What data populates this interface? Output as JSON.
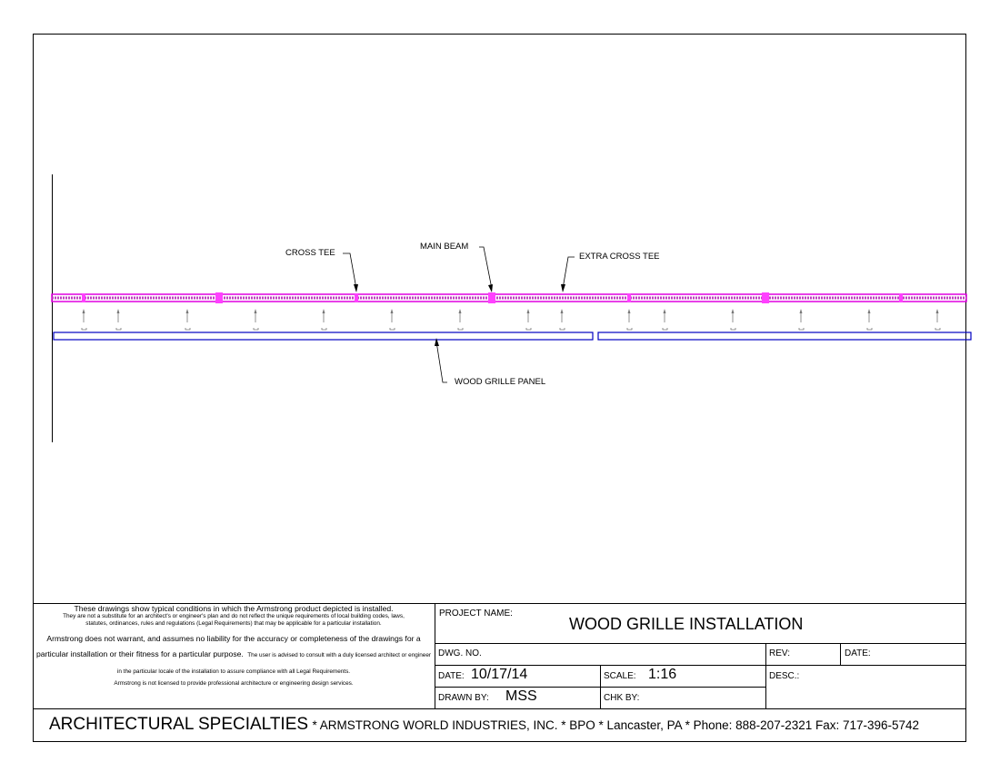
{
  "drawing": {
    "labels": {
      "cross_tee": "CROSS TEE",
      "main_beam": "MAIN BEAM",
      "extra_cross_tee": "EXTRA CROSS TEE",
      "wood_grille_panel": "WOOD GRILLE PANEL"
    }
  },
  "disclaimer": {
    "p1": "These drawings show typical conditions in which the Armstrong product depicted is installed.",
    "p2": "They are not a substitute for an architect's or engineer's plan and do not reflect the unique requirements of local building codes, laws, statutes, ordinances, rules and regulations (Legal Requirements) that may be applicable for a particular installation.",
    "p3": "Armstrong does not warrant, and assumes no liability for the accuracy or completeness of the drawings for a particular installation or their fitness for a particular purpose.",
    "p3b": "The user is advised to consult with a duly licensed architect or engineer in the particular locale of the installation to assure compliance with all Legal Requirements.",
    "p4": "Armstrong is not licensed to provide professional architecture or engineering design services."
  },
  "title_block": {
    "project_name_label": "PROJECT NAME:",
    "project_name": "WOOD GRILLE INSTALLATION",
    "dwg_no_label": "DWG. NO.",
    "rev_label": "REV:",
    "rev_date_label": "DATE:",
    "date_label": "DATE:",
    "date": "10/17/14",
    "scale_label": "SCALE:",
    "scale": "1:16",
    "desc_label": "DESC.:",
    "drawn_by_label": "DRAWN BY:",
    "drawn_by": "MSS",
    "chk_by_label": "CHK BY:"
  },
  "footer": {
    "company": "ARCHITECTURAL SPECIALTIES",
    "details": "* ARMSTRONG WORLD INDUSTRIES, INC. * BPO * Lancaster, PA * Phone: 888-207-2321 Fax: 717-396-5742"
  }
}
